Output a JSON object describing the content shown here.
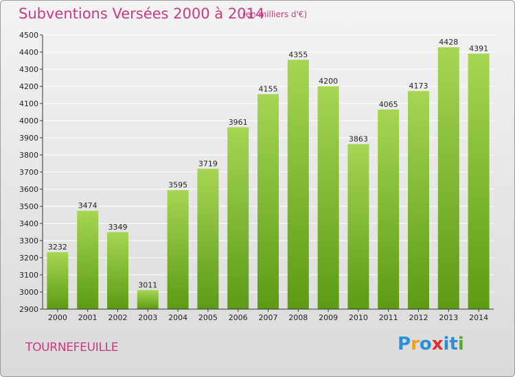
{
  "header": {
    "title": "Subventions Versées 2000 à 2014",
    "subtitle": "(en milliers d'€)"
  },
  "footer": {
    "commune": "TOURNEFEUILLE",
    "logo_text": "Proxiti",
    "logo_letters": [
      "P",
      "r",
      "o",
      "x",
      "i",
      "t",
      "i"
    ],
    "logo_colors": [
      "#2a8fd8",
      "#f0a020",
      "#2a8fd8",
      "#e03030",
      "#2a8fd8",
      "#2a8fd8",
      "#55aa33"
    ]
  },
  "colors": {
    "title": "#c63b82",
    "bar_top": "#a6d653",
    "bar_bottom": "#5c9b14",
    "grid": "#ffffff"
  },
  "chart_data": {
    "type": "bar",
    "categories": [
      "2000",
      "2001",
      "2002",
      "2003",
      "2004",
      "2005",
      "2006",
      "2007",
      "2008",
      "2009",
      "2010",
      "2011",
      "2012",
      "2013",
      "2014"
    ],
    "values": [
      3232,
      3474,
      3349,
      3011,
      3595,
      3719,
      3961,
      4155,
      4355,
      4200,
      3863,
      4065,
      4173,
      4428,
      4391
    ],
    "title": "Subventions Versées 2000 à 2014",
    "subtitle": "(en milliers d'€)",
    "xlabel": "",
    "ylabel": "",
    "ylim": [
      2900,
      4500
    ],
    "yticks": [
      2900,
      3000,
      3100,
      3200,
      3300,
      3400,
      3500,
      3600,
      3700,
      3800,
      3900,
      4000,
      4100,
      4200,
      4300,
      4400,
      4500
    ],
    "grid": true,
    "legend": "none"
  }
}
